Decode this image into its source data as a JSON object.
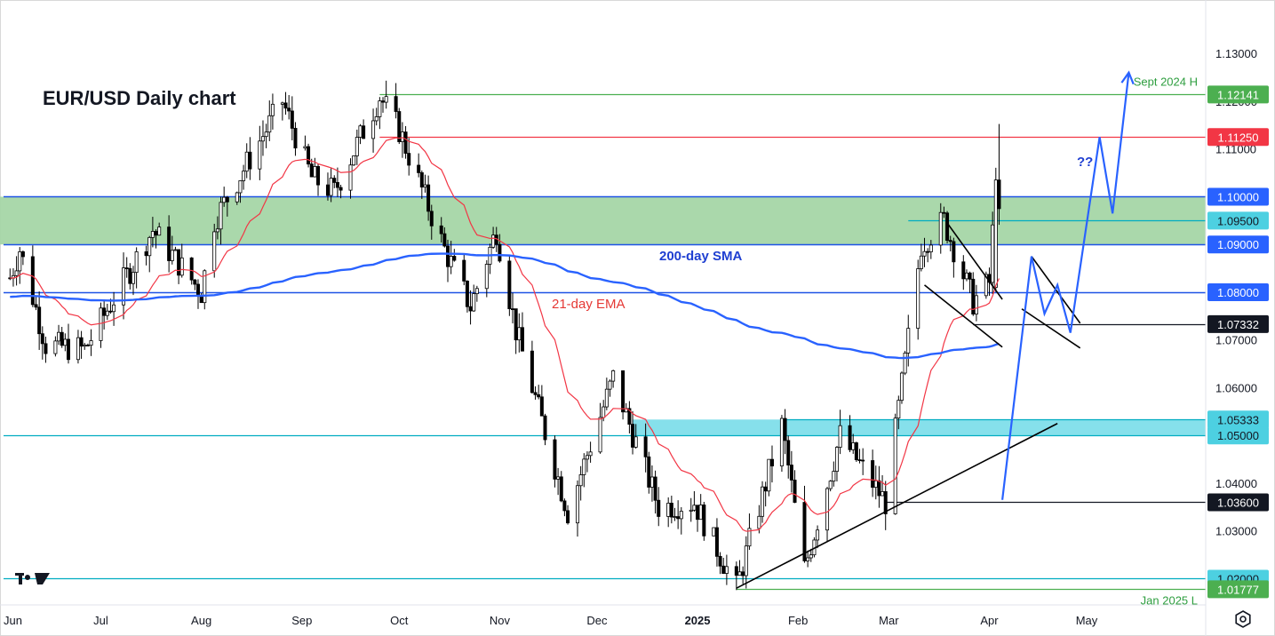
{
  "chart_data": {
    "type": "candlestick",
    "title": "EUR/USD Daily chart",
    "ylim": [
      1.0145,
      1.1412
    ],
    "yticks": [
      1.13,
      1.12,
      1.11,
      1.1,
      1.09,
      1.08,
      1.07,
      1.06,
      1.05,
      1.04,
      1.03,
      1.02
    ],
    "ytick_labels": [
      "1.13000",
      "1.12000",
      "1.11000",
      "1.10000",
      "1.09000",
      "1.08000",
      "1.07000",
      "1.06000",
      "1.05000",
      "1.04000",
      "1.03000",
      "1.02000"
    ],
    "x_labels": [
      {
        "label": "Jun",
        "bold": false
      },
      {
        "label": "Jul",
        "bold": false
      },
      {
        "label": "Aug",
        "bold": false
      },
      {
        "label": "Sep",
        "bold": false
      },
      {
        "label": "Oct",
        "bold": false
      },
      {
        "label": "Nov",
        "bold": false
      },
      {
        "label": "Dec",
        "bold": false
      },
      {
        "label": "2025",
        "bold": true
      },
      {
        "label": "Feb",
        "bold": false
      },
      {
        "label": "Mar",
        "bold": false
      },
      {
        "label": "Apr",
        "bold": false
      },
      {
        "label": "May",
        "bold": false
      }
    ],
    "price_path": [
      {
        "date": "2024-06-03",
        "price": 1.083
      },
      {
        "date": "2024-06-06",
        "price": 1.089
      },
      {
        "date": "2024-06-14",
        "price": 1.069
      },
      {
        "date": "2024-06-26",
        "price": 1.068
      },
      {
        "date": "2024-07-17",
        "price": 1.093
      },
      {
        "date": "2024-08-01",
        "price": 1.08
      },
      {
        "date": "2024-08-05",
        "price": 1.095
      },
      {
        "date": "2024-08-26",
        "price": 1.12
      },
      {
        "date": "2024-09-04",
        "price": 1.104
      },
      {
        "date": "2024-09-11",
        "price": 1.101
      },
      {
        "date": "2024-09-25",
        "price": 1.121
      },
      {
        "date": "2024-10-01",
        "price": 1.114
      },
      {
        "date": "2024-10-15",
        "price": 1.089
      },
      {
        "date": "2024-10-23",
        "price": 1.077
      },
      {
        "date": "2024-10-31",
        "price": 1.093
      },
      {
        "date": "2024-11-06",
        "price": 1.072
      },
      {
        "date": "2024-11-22",
        "price": 1.034
      },
      {
        "date": "2024-12-06",
        "price": 1.062
      },
      {
        "date": "2024-12-20",
        "price": 1.035
      },
      {
        "date": "2024-12-31",
        "price": 1.036
      },
      {
        "date": "2025-01-13",
        "price": 1.018
      },
      {
        "date": "2025-01-27",
        "price": 1.052
      },
      {
        "date": "2025-02-03",
        "price": 1.022
      },
      {
        "date": "2025-02-14",
        "price": 1.05
      },
      {
        "date": "2025-02-28",
        "price": 1.036
      },
      {
        "date": "2025-03-11",
        "price": 1.09
      },
      {
        "date": "2025-03-18",
        "price": 1.095
      },
      {
        "date": "2025-03-27",
        "price": 1.078
      },
      {
        "date": "2025-04-01",
        "price": 1.082
      },
      {
        "date": "2025-04-03",
        "price": 1.103
      },
      {
        "date": "2025-04-04",
        "price": 1.097
      }
    ],
    "ema21_label": "21-day EMA",
    "sma200_label": "200-day SMA",
    "question_label": "??",
    "colors": {
      "up": "#ffffff",
      "down": "#000000",
      "ema": "#f23645",
      "sma": "#2962ff",
      "green_zone": "#a5d6a7",
      "cyan_zone": "#80deea",
      "blue_line": "#1e53e5",
      "red_line": "#f23645",
      "green_line": "#4caf50",
      "cyan_line": "#00acc1",
      "projection": "#2962ff"
    },
    "zones": [
      {
        "name": "green-zone",
        "from": 1.09,
        "to": 1.1,
        "color": "#a5d6a7"
      },
      {
        "name": "cyan-zone",
        "from": 1.05,
        "to": 1.05333,
        "color": "#80deea"
      }
    ],
    "levels": [
      {
        "name": "sept-2024-high",
        "price": 1.12141,
        "label": "1.12141",
        "bg": "#4caf50",
        "text": "#ffffff",
        "line": "#4caf50",
        "from_date": "2024-09-25",
        "caption": "Sept 2024 H",
        "caption_color": "#2e9e3f"
      },
      {
        "name": "level-11125",
        "price": 1.1125,
        "label": "1.11250",
        "bg": "#f23645",
        "text": "#ffffff",
        "line": "#f23645",
        "from_date": "2024-09-25"
      },
      {
        "name": "level-1100",
        "price": 1.1,
        "label": "1.10000",
        "bg": "#2962ff",
        "text": "#ffffff",
        "line": "#1e53e5",
        "from_date": "2024-06-01"
      },
      {
        "name": "level-1095",
        "price": 1.095,
        "label": "1.09500",
        "bg": "#4dd0e1",
        "text": "#131722",
        "line": "#00acc1",
        "from_date": "2025-03-07"
      },
      {
        "name": "level-1090",
        "price": 1.09,
        "label": "1.09000",
        "bg": "#2962ff",
        "text": "#ffffff",
        "line": "#1e53e5",
        "from_date": "2024-06-01"
      },
      {
        "name": "level-1080",
        "price": 1.08,
        "label": "1.08000",
        "bg": "#2962ff",
        "text": "#ffffff",
        "line": "#1e53e5",
        "from_date": "2024-06-01"
      },
      {
        "name": "level-107332",
        "price": 1.07332,
        "label": "1.07332",
        "bg": "#131722",
        "text": "#ffffff",
        "line": "#131722",
        "from_date": "2025-03-27"
      },
      {
        "name": "level-105333",
        "price": 1.05333,
        "label": "1.05333",
        "bg": "#4dd0e1",
        "text": "#131722",
        "line": "#00acc1",
        "from_date": "2025-01-27"
      },
      {
        "name": "level-1050",
        "price": 1.05,
        "label": "1.05000",
        "bg": "#4dd0e1",
        "text": "#131722",
        "line": "#00acc1",
        "from_date": "2024-06-01"
      },
      {
        "name": "level-1036",
        "price": 1.036,
        "label": "1.03600",
        "bg": "#131722",
        "text": "#ffffff",
        "line": "#131722",
        "from_date": "2025-02-28"
      },
      {
        "name": "level-1020",
        "price": 1.02,
        "label": "1.02000",
        "bg": "#4dd0e1",
        "text": "#131722",
        "line": "#00acc1",
        "from_date": "2024-06-01"
      },
      {
        "name": "jan-2025-low",
        "price": 1.01777,
        "label": "1.01777",
        "bg": "#4caf50",
        "text": "#ffffff",
        "line": "#4caf50",
        "from_date": "2025-01-13",
        "caption": "Jan 2025 L",
        "caption_color": "#2e9e3f"
      }
    ],
    "trendlines": [
      {
        "name": "support-trendline",
        "points": [
          {
            "date": "2025-01-13",
            "price": 1.018
          },
          {
            "date": "2025-04-22",
            "price": 1.0525
          }
        ]
      },
      {
        "name": "flag-upper-line",
        "points": [
          {
            "date": "2025-03-19",
            "price": 1.0945
          },
          {
            "date": "2025-04-05",
            "price": 1.0785
          }
        ]
      },
      {
        "name": "flag-lower-line",
        "points": [
          {
            "date": "2025-03-12",
            "price": 1.0815
          },
          {
            "date": "2025-04-05",
            "price": 1.0685
          }
        ]
      },
      {
        "name": "future-flag-upper-line",
        "points": [
          {
            "date": "2025-04-14",
            "price": 1.0875
          },
          {
            "date": "2025-04-29",
            "price": 1.0735
          }
        ]
      },
      {
        "name": "future-flag-lower-line",
        "points": [
          {
            "date": "2025-04-11",
            "price": 1.0765
          },
          {
            "date": "2025-04-29",
            "price": 1.0683
          }
        ]
      }
    ],
    "projection_up": [
      {
        "date": "2025-04-05",
        "price": 1.0365
      },
      {
        "date": "2025-04-14",
        "price": 1.0875
      },
      {
        "date": "2025-04-18",
        "price": 1.0755
      },
      {
        "date": "2025-04-22",
        "price": 1.0815
      },
      {
        "date": "2025-04-26",
        "price": 1.0715
      },
      {
        "date": "2025-05-05",
        "price": 1.1125
      },
      {
        "date": "2025-05-09",
        "price": 1.0965
      },
      {
        "date": "2025-05-14",
        "price": 1.126
      }
    ]
  }
}
